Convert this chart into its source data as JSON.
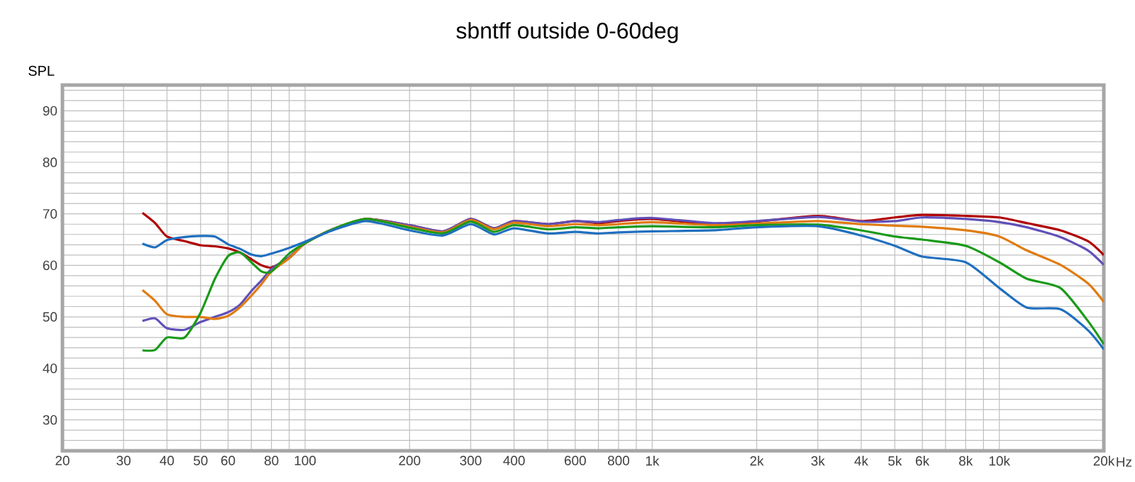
{
  "chart_data": {
    "type": "line",
    "title": "sbntff outside 0-60deg",
    "ylabel": "SPL",
    "log": "x",
    "grid": true,
    "legend": false,
    "marker": "none",
    "line_style": "solid",
    "x": [
      34,
      37,
      40,
      45,
      50,
      55,
      60,
      65,
      70,
      75,
      80,
      90,
      100,
      120,
      150,
      200,
      250,
      300,
      350,
      400,
      500,
      600,
      700,
      800,
      1000,
      1500,
      2000,
      3000,
      4000,
      5000,
      6000,
      8000,
      10000,
      12000,
      15000,
      18000,
      20000
    ],
    "series": [
      {
        "color": "#b00000",
        "values": [
          70.2,
          68.2,
          65.6,
          64.7,
          63.9,
          63.7,
          63.3,
          62.5,
          61.2,
          60,
          59.6,
          61.4,
          64.3,
          67,
          69,
          67.8,
          66.6,
          69,
          67.2,
          68.6,
          68,
          68.6,
          68.2,
          68.6,
          69,
          68,
          68.5,
          69.6,
          68.6,
          69.3,
          69.8,
          69.6,
          69.3,
          68.2,
          66.8,
          64.7,
          62
        ]
      },
      {
        "color": "#6050b8",
        "values": [
          49.2,
          49.7,
          47.8,
          47.5,
          49,
          50,
          50.9,
          52.4,
          55,
          57.1,
          59.3,
          61.6,
          64.3,
          67,
          69,
          67.8,
          66.6,
          69,
          67.2,
          68.6,
          68,
          68.6,
          68.4,
          68.8,
          69.2,
          68.2,
          68.6,
          69.4,
          68.5,
          68.6,
          69.3,
          69,
          68.4,
          67.4,
          65.5,
          62.9,
          60.1
        ]
      },
      {
        "color": "#e07b10",
        "values": [
          55.2,
          53.1,
          50.5,
          50,
          50,
          49.6,
          50.2,
          51.9,
          54.1,
          56.4,
          58.8,
          61.4,
          64.3,
          67,
          69,
          67.5,
          66.4,
          68.8,
          67,
          68.3,
          67.6,
          68,
          67.8,
          68,
          68.4,
          67.8,
          68.1,
          68.6,
          68,
          67.7,
          67.5,
          66.8,
          65.6,
          62.9,
          60.1,
          56.5,
          52.9
        ]
      },
      {
        "color": "#1a9a1a",
        "values": [
          43.5,
          43.6,
          46,
          46,
          50.8,
          57.4,
          61.8,
          62.5,
          60.6,
          58.8,
          58.8,
          62.3,
          64.3,
          67,
          69,
          67.3,
          66.2,
          68.5,
          66.5,
          67.8,
          67,
          67.4,
          67.2,
          67.4,
          67.6,
          67.4,
          67.8,
          67.9,
          66.8,
          65.6,
          65,
          63.8,
          60.6,
          57.4,
          55.6,
          49.2,
          44.7
        ]
      },
      {
        "color": "#1f6fbf",
        "values": [
          64.2,
          63.5,
          64.9,
          65.5,
          65.7,
          65.6,
          64.1,
          63.2,
          62.1,
          61.8,
          62.3,
          63.4,
          64.6,
          66.8,
          68.6,
          66.8,
          65.8,
          68,
          66,
          67.2,
          66.2,
          66.5,
          66.2,
          66.4,
          66.6,
          66.8,
          67.4,
          67.6,
          65.8,
          63.8,
          61.7,
          60.6,
          55.6,
          51.8,
          51.5,
          47.4,
          43.7
        ]
      }
    ],
    "xlim": [
      20,
      20000
    ],
    "ylim": [
      24,
      95
    ],
    "xticks": [
      20,
      30,
      40,
      50,
      60,
      {
        "value": 70,
        "label": null
      },
      80,
      {
        "value": 90,
        "label": null
      },
      100,
      200,
      300,
      400,
      {
        "value": 500,
        "label": null
      },
      600,
      {
        "value": 700,
        "label": null
      },
      800,
      {
        "value": 900,
        "label": null
      },
      {
        "value": 1000,
        "label": "1k"
      },
      {
        "value": 2000,
        "label": "2k"
      },
      {
        "value": 3000,
        "label": "3k"
      },
      {
        "value": 4000,
        "label": "4k"
      },
      {
        "value": 5000,
        "label": "5k"
      },
      {
        "value": 6000,
        "label": "6k"
      },
      {
        "value": 7000,
        "label": null
      },
      {
        "value": 8000,
        "label": "8k"
      },
      {
        "value": 9000,
        "label": null
      },
      {
        "value": 10000,
        "label": "10k"
      },
      {
        "value": 20000,
        "label": "20k"
      }
    ],
    "xlabel": "Hz",
    "yticks": [
      {
        "value": 26,
        "label": null
      },
      {
        "value": 28,
        "label": null
      },
      30,
      {
        "value": 32,
        "label": null
      },
      {
        "value": 34,
        "label": null
      },
      {
        "value": 36,
        "label": null
      },
      {
        "value": 38,
        "label": null
      },
      40,
      {
        "value": 42,
        "label": null
      },
      {
        "value": 44,
        "label": null
      },
      {
        "value": 46,
        "label": null
      },
      {
        "value": 48,
        "label": null
      },
      50,
      {
        "value": 52,
        "label": null
      },
      {
        "value": 54,
        "label": null
      },
      {
        "value": 56,
        "label": null
      },
      {
        "value": 58,
        "label": null
      },
      60,
      {
        "value": 62,
        "label": null
      },
      {
        "value": 64,
        "label": null
      },
      {
        "value": 66,
        "label": null
      },
      {
        "value": 68,
        "label": null
      },
      70,
      {
        "value": 72,
        "label": null
      },
      {
        "value": 74,
        "label": null
      },
      {
        "value": 76,
        "label": null
      },
      {
        "value": 78,
        "label": null
      },
      80,
      {
        "value": 82,
        "label": null
      },
      {
        "value": 84,
        "label": null
      },
      {
        "value": 86,
        "label": null
      },
      {
        "value": 88,
        "label": null
      },
      90,
      {
        "value": 92,
        "label": null
      },
      {
        "value": 94,
        "label": null
      }
    ]
  }
}
